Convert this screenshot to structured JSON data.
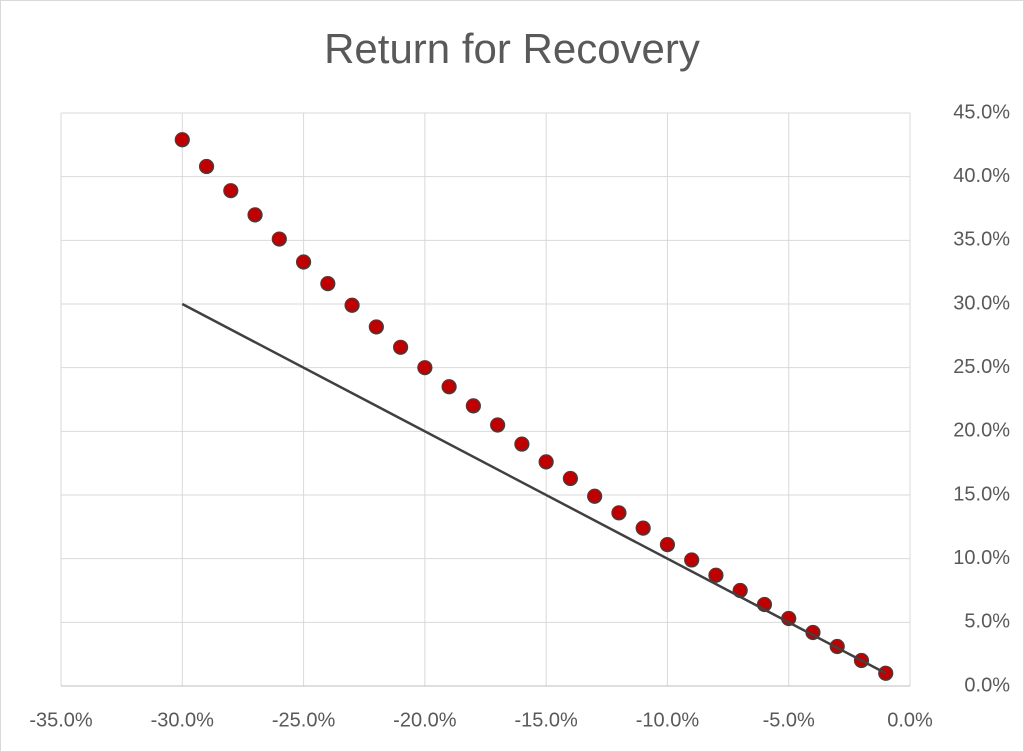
{
  "chart_data": {
    "type": "scatter",
    "title": "Return for Recovery",
    "series": [
      {
        "style": "markers",
        "color": "#c00000",
        "x": [
          -30,
          -29,
          -28,
          -27,
          -26,
          -25,
          -24,
          -23,
          -22,
          -21,
          -20,
          -19,
          -18,
          -17,
          -16,
          -15,
          -14,
          -13,
          -12,
          -11,
          -10,
          -9,
          -8,
          -7,
          -6,
          -5,
          -4,
          -3,
          -2,
          -1
        ],
        "values": [
          42.9,
          40.8,
          38.9,
          37.0,
          35.1,
          33.3,
          31.6,
          29.9,
          28.2,
          26.6,
          25.0,
          23.5,
          22.0,
          20.5,
          19.0,
          17.6,
          16.3,
          14.9,
          13.6,
          12.4,
          11.1,
          9.9,
          8.7,
          7.5,
          6.4,
          5.3,
          4.2,
          3.1,
          2.0,
          1.0
        ]
      },
      {
        "style": "line",
        "color": "#404040",
        "x": [
          -30,
          -1
        ],
        "values": [
          30,
          1
        ]
      }
    ],
    "xlim": [
      -35,
      0
    ],
    "xticks": [
      {
        "value": -35,
        "label": "-35.0%"
      },
      {
        "value": -30,
        "label": "-30.0%"
      },
      {
        "value": -25,
        "label": "-25.0%"
      },
      {
        "value": -20,
        "label": "-20.0%"
      },
      {
        "value": -15,
        "label": "-15.0%"
      },
      {
        "value": -10,
        "label": "-10.0%"
      },
      {
        "value": -5,
        "label": "-5.0%"
      },
      {
        "value": 0,
        "label": "0.0%"
      }
    ],
    "ylim": [
      0,
      45
    ],
    "yticks": [
      {
        "value": 0,
        "label": "0.0%"
      },
      {
        "value": 5,
        "label": "5.0%"
      },
      {
        "value": 10,
        "label": "10.0%"
      },
      {
        "value": 15,
        "label": "15.0%"
      },
      {
        "value": 20,
        "label": "20.0%"
      },
      {
        "value": 25,
        "label": "25.0%"
      },
      {
        "value": 30,
        "label": "30.0%"
      },
      {
        "value": 35,
        "label": "35.0%"
      },
      {
        "value": 40,
        "label": "40.0%"
      },
      {
        "value": 45,
        "label": "45.0%"
      }
    ],
    "y_axis_side": "right",
    "grid": true
  }
}
